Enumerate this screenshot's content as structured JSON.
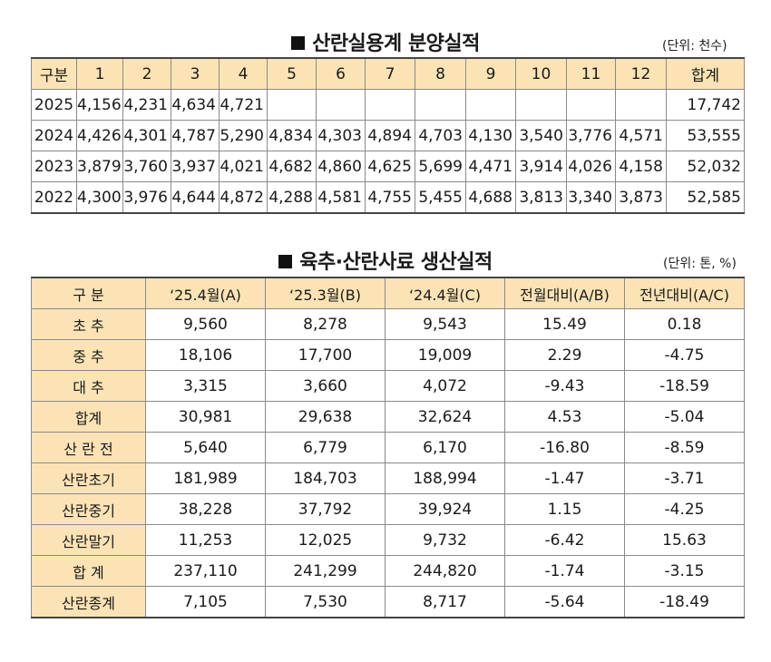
{
  "section1": {
    "title": "산란실용계 분양실적",
    "unit": "(단위: 천수)",
    "headers": [
      "구분",
      "1",
      "2",
      "3",
      "4",
      "5",
      "6",
      "7",
      "8",
      "9",
      "10",
      "11",
      "12",
      "합계"
    ],
    "rows": [
      [
        "2025",
        "4,156",
        "4,231",
        "4,634",
        "4,721",
        "",
        "",
        "",
        "",
        "",
        "",
        "",
        "",
        "17,742"
      ],
      [
        "2024",
        "4,426",
        "4,301",
        "4,787",
        "5,290",
        "4,834",
        "4,303",
        "4,894",
        "4,703",
        "4,130",
        "3,540",
        "3,776",
        "4,571",
        "53,555"
      ],
      [
        "2023",
        "3,879",
        "3,760",
        "3,937",
        "4,021",
        "4,682",
        "4,860",
        "4,625",
        "5,699",
        "4,471",
        "3,914",
        "4,026",
        "4,158",
        "52,032"
      ],
      [
        "2022",
        "4,300",
        "3,976",
        "4,644",
        "4,872",
        "4,288",
        "4,581",
        "4,755",
        "5,455",
        "4,688",
        "3,813",
        "3,340",
        "3,873",
        "52,585"
      ]
    ]
  },
  "section2": {
    "title": "육추·산란사료 생산실적",
    "unit": "(단위: 톤, %)",
    "headers": [
      "구 분",
      "‘25.4월(A)",
      "‘25.3월(B)",
      "‘24.4월(C)",
      "전월대비(A/B)",
      "전년대비(A/C)"
    ],
    "rows": [
      [
        "초 추",
        "9,560",
        "8,278",
        "9,543",
        "15.49",
        "0.18"
      ],
      [
        "중 추",
        "18,106",
        "17,700",
        "19,009",
        "2.29",
        "-4.75"
      ],
      [
        "대 추",
        "3,315",
        "3,660",
        "4,072",
        "-9.43",
        "-18.59"
      ],
      [
        "합계",
        "30,981",
        "29,638",
        "32,624",
        "4.53",
        "-5.04"
      ],
      [
        "산 란 전",
        "5,640",
        "6,779",
        "6,170",
        "-16.80",
        "-8.59"
      ],
      [
        "산란초기",
        "181,989",
        "184,703",
        "188,994",
        "-1.47",
        "-3.71"
      ],
      [
        "산란중기",
        "38,228",
        "37,792",
        "39,924",
        "1.15",
        "-4.25"
      ],
      [
        "산란말기",
        "11,253",
        "12,025",
        "9,732",
        "-6.42",
        "15.63"
      ],
      [
        "합 계",
        "237,110",
        "241,299",
        "244,820",
        "-1.74",
        "-3.15"
      ],
      [
        "산란종계",
        "7,105",
        "7,530",
        "8,717",
        "-5.64",
        "-18.49"
      ]
    ]
  }
}
